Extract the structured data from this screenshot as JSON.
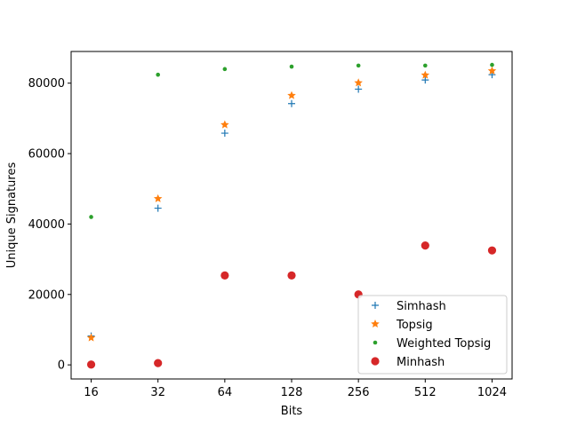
{
  "chart_data": {
    "type": "scatter",
    "xlabel": "Bits",
    "ylabel": "Unique Signatures",
    "x_scale": "log2",
    "x": [
      16,
      32,
      64,
      128,
      256,
      512,
      1024
    ],
    "x_tick_labels": [
      "16",
      "32",
      "64",
      "128",
      "256",
      "512",
      "1024"
    ],
    "ylim": [
      -4000,
      89000
    ],
    "y_ticks": [
      0,
      20000,
      40000,
      60000,
      80000
    ],
    "y_tick_labels": [
      "0",
      "20000",
      "40000",
      "60000",
      "80000"
    ],
    "grid": false,
    "legend_position": "lower-right",
    "series": [
      {
        "name": "Simhash",
        "marker": "plus",
        "color": "#1f77b4",
        "values": [
          8200,
          44500,
          65800,
          74200,
          78300,
          80900,
          82400
        ]
      },
      {
        "name": "Topsig",
        "marker": "star",
        "color": "#ff7f0e",
        "values": [
          7700,
          47200,
          68200,
          76500,
          80100,
          82300,
          83500
        ]
      },
      {
        "name": "Weighted Topsig",
        "marker": "dot",
        "color": "#2ca02c",
        "values": [
          42000,
          82400,
          84000,
          84700,
          85000,
          85000,
          85200
        ]
      },
      {
        "name": "Minhash",
        "marker": "circle",
        "color": "#d62728",
        "values": [
          100,
          500,
          25400,
          25400,
          20000,
          33900,
          32500
        ]
      }
    ]
  }
}
